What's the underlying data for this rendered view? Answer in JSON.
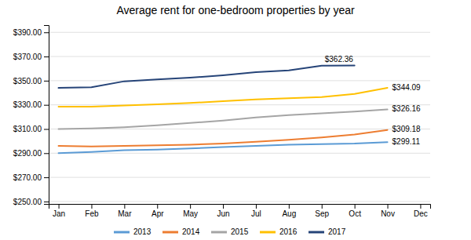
{
  "chart_data": {
    "type": "line",
    "title": "Average rent for one-bedroom properties by year",
    "categories": [
      "Jan",
      "Feb",
      "Mar",
      "Apr",
      "May",
      "Jun",
      "Jul",
      "Aug",
      "Sep",
      "Oct",
      "Nov",
      "Dec"
    ],
    "series": [
      {
        "name": "2013",
        "color": "#5B9BD5",
        "values": [
          290.0,
          291.0,
          292.5,
          293.0,
          294.0,
          295.0,
          296.0,
          297.0,
          297.5,
          298.0,
          299.11,
          null
        ]
      },
      {
        "name": "2014",
        "color": "#ED7D31",
        "values": [
          296.0,
          295.5,
          296.0,
          296.5,
          297.0,
          298.0,
          299.5,
          301.0,
          303.0,
          305.5,
          309.18,
          null
        ]
      },
      {
        "name": "2015",
        "color": "#A5A5A5",
        "values": [
          310.0,
          310.5,
          311.5,
          313.0,
          315.0,
          317.0,
          319.5,
          321.5,
          323.0,
          324.5,
          326.16,
          null
        ]
      },
      {
        "name": "2016",
        "color": "#FFC000",
        "values": [
          328.5,
          328.5,
          329.5,
          330.5,
          331.5,
          333.0,
          334.5,
          335.5,
          336.5,
          339.0,
          344.09,
          null
        ]
      },
      {
        "name": "2017",
        "color": "#264478",
        "values": [
          344.0,
          344.5,
          349.5,
          351.0,
          352.5,
          354.5,
          357.0,
          358.5,
          362.36,
          362.5,
          null,
          null
        ]
      }
    ],
    "annotations": [
      {
        "label": "$344.09",
        "x": "Nov",
        "y": 344.09
      },
      {
        "label": "$326.16",
        "x": "Nov",
        "y": 326.16
      },
      {
        "label": "$309.18",
        "x": "Nov",
        "y": 309.18
      },
      {
        "label": "$299.11",
        "x": "Nov",
        "y": 299.11
      },
      {
        "label": "$362.36",
        "x": "Sep",
        "y": 362.36
      }
    ],
    "ylim": [
      248,
      396
    ],
    "yticks": [
      {
        "value": 250,
        "label": "$250.00"
      },
      {
        "value": 270,
        "label": "$270.00"
      },
      {
        "value": 290,
        "label": "$290.00"
      },
      {
        "value": 310,
        "label": "$310.00"
      },
      {
        "value": 330,
        "label": "$330.00"
      },
      {
        "value": 350,
        "label": "$350.00"
      },
      {
        "value": 370,
        "label": "$370.00"
      },
      {
        "value": 390,
        "label": "$390.00"
      }
    ],
    "grid": true,
    "legend": "bottom"
  }
}
